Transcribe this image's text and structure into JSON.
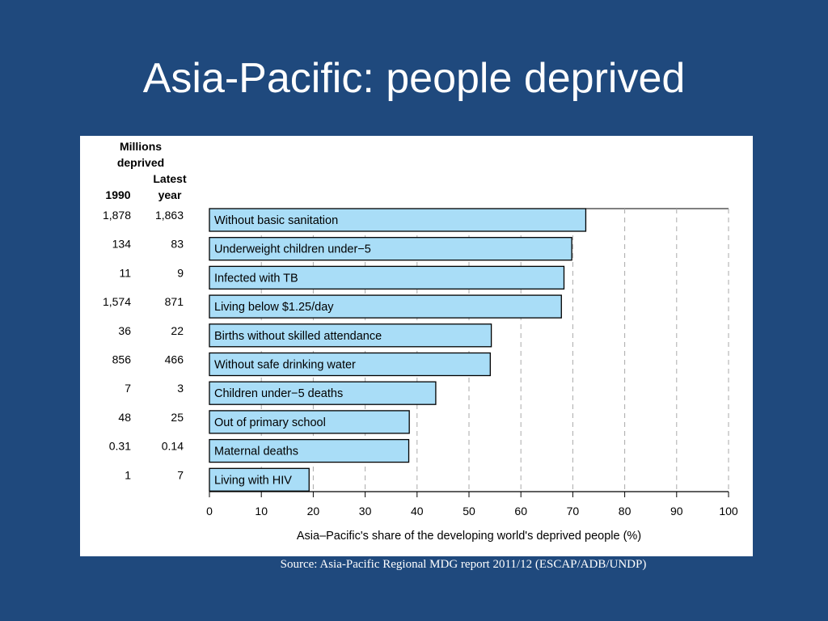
{
  "slide": {
    "title": "Asia-Pacific: people deprived",
    "source": "Source: Asia-Pacific Regional MDG report 2011/12 (ESCAP/ADB/UNDP)"
  },
  "chart_data": {
    "type": "bar",
    "orientation": "horizontal",
    "xlabel": "Asia–Pacific's share of the developing world's deprived people (%)",
    "xlim": [
      0,
      100
    ],
    "x_ticks": [
      0,
      10,
      20,
      30,
      40,
      50,
      60,
      70,
      80,
      90,
      100
    ],
    "grid": "vertical dashed",
    "bar_color": "#a9ddf7",
    "table_header": {
      "millions_deprived": "Millions\ndeprived",
      "col_1990": "1990",
      "col_latest": "Latest\nyear"
    },
    "categories": [
      "Without basic sanitation",
      "Underweight children under−5",
      "Infected with TB",
      "Living below $1.25/day",
      "Births without skilled attendance",
      "Without safe drinking water",
      "Children under−5 deaths",
      "Out of primary school",
      "Maternal deaths",
      "Living with HIV"
    ],
    "values": [
      72.5,
      69.8,
      68.3,
      67.8,
      54.3,
      54.1,
      43.6,
      38.5,
      38.4,
      19.2
    ],
    "millions_1990": [
      "1,878",
      "134",
      "11",
      "1,574",
      "36",
      "856",
      "7",
      "48",
      "0.31",
      "1"
    ],
    "millions_latest": [
      "1,863",
      "83",
      "9",
      "871",
      "22",
      "466",
      "3",
      "25",
      "0.14",
      "7"
    ]
  }
}
